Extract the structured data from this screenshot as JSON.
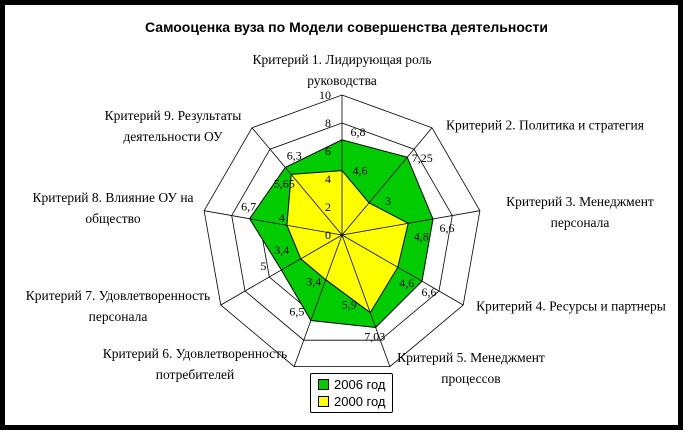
{
  "page": {
    "title": "Самооценка вуза по Модели совершенства деятельности"
  },
  "chart_data": {
    "type": "radar",
    "title": "Самооценка вуза по Модели совершенства деятельности",
    "axis_range": [
      0,
      10
    ],
    "axis_ticks": [
      0,
      2,
      4,
      6,
      8,
      10
    ],
    "grid": true,
    "legend_position": "bottom-center",
    "categories": [
      {
        "label": "Критерий 1. Лидирующая роль руководства",
        "lines": [
          "Критерий 1. Лидирующая роль",
          "руководства"
        ]
      },
      {
        "label": "Критерий 2. Политика и стратегия",
        "lines": [
          "Критерий 2. Политика и стратегия"
        ]
      },
      {
        "label": "Критерий 3. Менеджмент персонала",
        "lines": [
          "Критерий 3. Менеджмент",
          "персонала"
        ]
      },
      {
        "label": "Критерий 4. Ресурсы и партнеры",
        "lines": [
          "Критерий 4. Ресурсы и партнеры"
        ]
      },
      {
        "label": "Критерий 5. Менеджмент процессов",
        "lines": [
          "Критерий 5. Менеджмент",
          "процессов"
        ]
      },
      {
        "label": "Критерий 6. Удовлетворенность потребителей",
        "lines": [
          "Критерий 6. Удовлетворенность",
          "потребителей"
        ]
      },
      {
        "label": "Критерий 7. Удовлетворенность персонала",
        "lines": [
          "Критерий 7. Удовлетворенность",
          "персонала"
        ]
      },
      {
        "label": "Критерий 8. Влияние ОУ на общество",
        "lines": [
          "Критерий 8. Влияние ОУ на",
          "общество"
        ]
      },
      {
        "label": "Критерий 9. Результаты деятельности ОУ",
        "lines": [
          "Критерий 9. Результаты",
          "деятельности ОУ"
        ]
      }
    ],
    "series": [
      {
        "name": "2006 год",
        "color": "#00cc00",
        "values": [
          6.8,
          7.25,
          6.6,
          6.6,
          7.03,
          6.5,
          5,
          6.7,
          6.3
        ],
        "value_labels": [
          "6,8",
          "7,25",
          "6,6",
          "6,6",
          "7,03",
          "6,5",
          "5",
          "6,7",
          "6,3"
        ]
      },
      {
        "name": "2000 год",
        "color": "#ffff00",
        "values": [
          4.6,
          3,
          4.8,
          4.6,
          5.9,
          3.4,
          3.4,
          4,
          5.65
        ],
        "value_labels": [
          "4,6",
          "3",
          "4,8",
          "4,6",
          "5,9",
          "3,4",
          "3,4",
          "4",
          "5,65"
        ]
      }
    ]
  }
}
